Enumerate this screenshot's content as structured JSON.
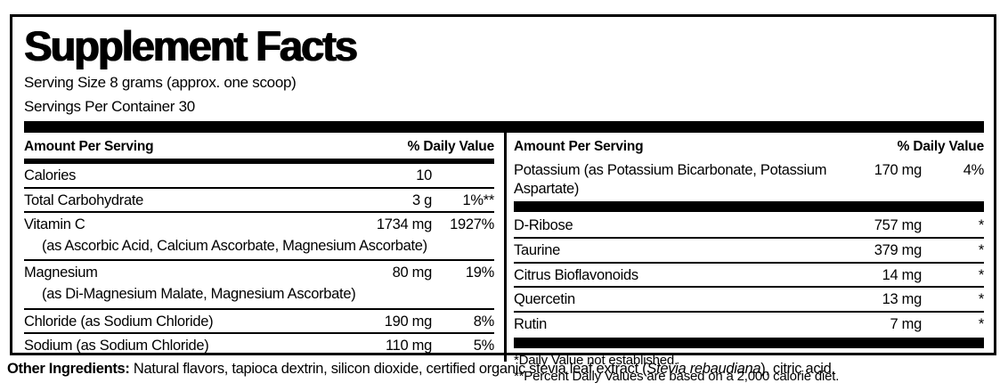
{
  "colors": {
    "ink": "#000000",
    "background": "#ffffff"
  },
  "label": {
    "title": "Supplement Facts",
    "serving_size": "Serving Size 8 grams (approx. one scoop)",
    "servings_per_container": "Servings Per Container 30",
    "columns": [
      {
        "header": {
          "amount": "Amount Per Serving",
          "dv": "% Daily Value"
        },
        "rows": [
          {
            "name": "Calories",
            "amount": "10",
            "dv": ""
          },
          {
            "name": "Total Carbohydrate",
            "amount": "3 g",
            "dv": "1%**"
          },
          {
            "name": "Vitamin C",
            "sub": "(as Ascorbic Acid, Calcium Ascorbate, Magnesium Ascorbate)",
            "amount": "1734 mg",
            "dv": "1927%"
          },
          {
            "name": "Magnesium",
            "sub": "(as Di-Magnesium Malate, Magnesium Ascorbate)",
            "amount": "80 mg",
            "dv": "19%"
          },
          {
            "name": "Chloride (as Sodium Chloride)",
            "amount": "190 mg",
            "dv": "8%"
          },
          {
            "name": "Sodium (as Sodium Chloride)",
            "amount": "110 mg",
            "dv": "5%"
          }
        ],
        "footnotes": []
      },
      {
        "header": {
          "amount": "Amount Per Serving",
          "dv": "% Daily Value"
        },
        "rows": [
          {
            "name": "Potassium (as Potassium Bicarbonate, Potassium Aspartate)",
            "amount": "170 mg",
            "dv": "4%",
            "bar_after": true
          },
          {
            "name": "D-Ribose",
            "amount": "757 mg",
            "dv": "*"
          },
          {
            "name": "Taurine",
            "amount": "379 mg",
            "dv": "*"
          },
          {
            "name": "Citrus Bioflavonoids",
            "amount": "14 mg",
            "dv": "*"
          },
          {
            "name": "Quercetin",
            "amount": "13 mg",
            "dv": "*"
          },
          {
            "name": "Rutin",
            "amount": "7 mg",
            "dv": "*",
            "bar_after": true
          }
        ],
        "footnotes": [
          "*Daily Value not established.",
          "**Percent Daily Values are based on a 2,000 calorie diet."
        ]
      }
    ],
    "other_ingredients": {
      "label": "Other Ingredients:",
      "text_before_italic": " Natural flavors, tapioca dextrin, silicon dioxide, certified organic stevia leaf extract (",
      "italic": "Stevia rebaudiana",
      "text_after_italic": "), citric acid."
    }
  }
}
